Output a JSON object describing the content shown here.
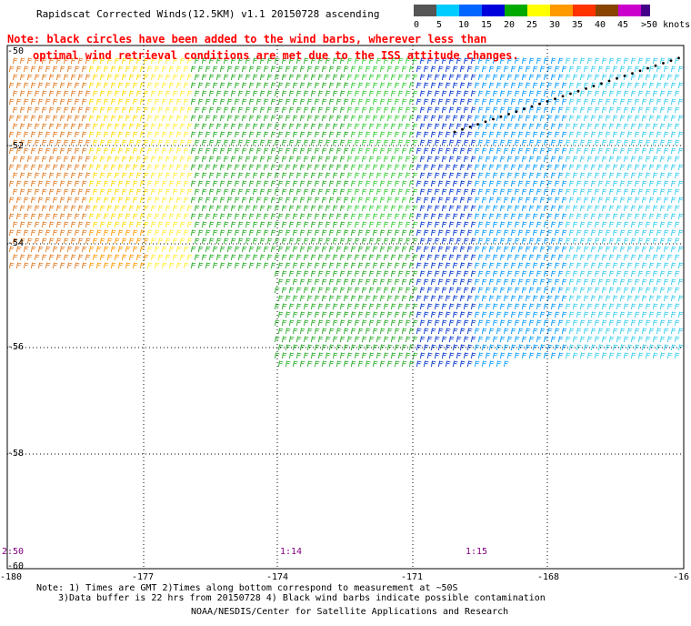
{
  "title": "Rapidscat Corrected Winds(12.5KM) v1.1 20150728 ascending",
  "note": {
    "line1": "Note: black circles have been added to the wind barbs, wherever less than",
    "line2": "optimal wind retrieval conditions are met due to the ISS attitude changes."
  },
  "legend": {
    "labels": [
      "0",
      "5",
      "10",
      "15",
      "20",
      "25",
      "30",
      "35",
      "40",
      "45",
      ">50 knots"
    ],
    "colors": [
      "#555555",
      "#00ccff",
      "#0066ff",
      "#0000dd",
      "#00aa00",
      "#ffff00",
      "#ff9900",
      "#ff3300",
      "#884400",
      "#cc00cc",
      "#440088"
    ]
  },
  "axes": {
    "lat_labels": [
      "-50",
      "-52",
      "-54",
      "-56",
      "-58",
      "-60"
    ],
    "lon_labels": [
      "-180",
      "-177",
      "-174",
      "-171",
      "-168",
      "-16"
    ]
  },
  "times": [
    "2:50",
    "1:14",
    "1:15"
  ],
  "footer": {
    "line1": "Note: 1) Times are GMT 2)Times along bottom correspond to measurement at ~50S",
    "line2": "3)Data buffer is 22 hrs from 20150728 4) Black wind barbs indicate possible contamination"
  },
  "credit": "NOAA/NESDIS/Center for Satellite Applications and Research"
}
